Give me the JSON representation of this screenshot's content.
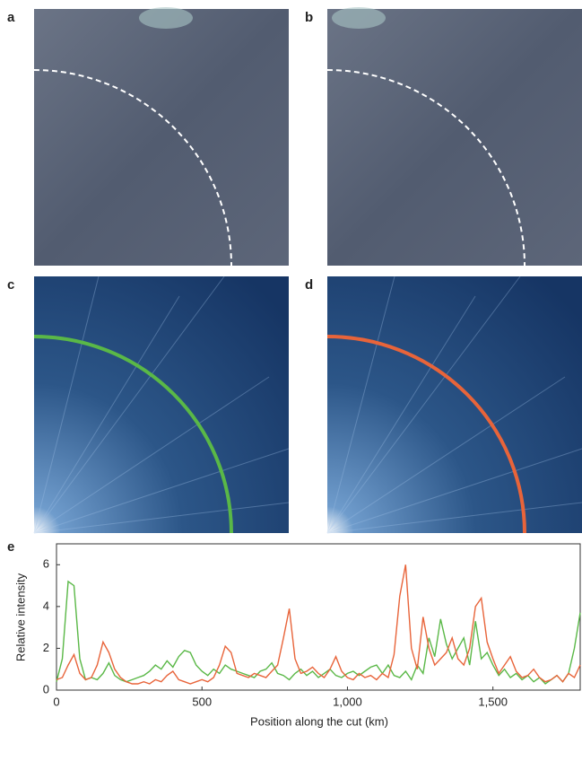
{
  "panel_labels": [
    "a",
    "b",
    "c",
    "d",
    "e"
  ],
  "chart_data": {
    "type": "line",
    "xlabel": "Position along the cut (km)",
    "ylabel": "Relative intensity",
    "x": [
      0,
      20,
      40,
      60,
      80,
      100,
      120,
      140,
      160,
      180,
      200,
      220,
      240,
      260,
      280,
      300,
      320,
      340,
      360,
      380,
      400,
      420,
      440,
      460,
      480,
      500,
      520,
      540,
      560,
      580,
      600,
      620,
      640,
      660,
      680,
      700,
      720,
      740,
      760,
      780,
      800,
      820,
      840,
      860,
      880,
      900,
      920,
      940,
      960,
      980,
      1000,
      1020,
      1040,
      1060,
      1080,
      1100,
      1120,
      1140,
      1160,
      1180,
      1200,
      1220,
      1240,
      1260,
      1280,
      1300,
      1320,
      1340,
      1360,
      1380,
      1400,
      1420,
      1440,
      1460,
      1480,
      1500,
      1520,
      1540,
      1560,
      1580,
      1600,
      1620,
      1640,
      1660,
      1680,
      1700,
      1720,
      1740,
      1760,
      1780,
      1800
    ],
    "series": [
      {
        "color": "#5ab847",
        "values": [
          0.4,
          1.5,
          5.2,
          5.0,
          1.5,
          0.5,
          0.6,
          0.5,
          0.8,
          1.3,
          0.7,
          0.5,
          0.4,
          0.5,
          0.6,
          0.7,
          0.9,
          1.2,
          1.0,
          1.4,
          1.1,
          1.6,
          1.9,
          1.8,
          1.2,
          0.9,
          0.7,
          1.0,
          0.8,
          1.2,
          1.0,
          0.9,
          0.8,
          0.7,
          0.6,
          0.9,
          1.0,
          1.3,
          0.8,
          0.7,
          0.5,
          0.8,
          1.0,
          0.7,
          0.9,
          0.6,
          0.8,
          1.0,
          0.7,
          0.6,
          0.8,
          0.9,
          0.7,
          0.9,
          1.1,
          1.2,
          0.8,
          1.2,
          0.7,
          0.6,
          0.9,
          0.5,
          1.2,
          0.8,
          2.5,
          1.6,
          3.4,
          2.2,
          1.5,
          2.0,
          2.5,
          1.2,
          3.3,
          1.5,
          1.8,
          1.2,
          0.7,
          1.0,
          0.6,
          0.8,
          0.5,
          0.7,
          0.4,
          0.6,
          0.3,
          0.5,
          0.7,
          0.4,
          0.8,
          2.0,
          3.7
        ]
      },
      {
        "color": "#e8643a",
        "values": [
          0.5,
          0.6,
          1.2,
          1.7,
          0.8,
          0.5,
          0.6,
          1.2,
          2.3,
          1.8,
          1.0,
          0.6,
          0.4,
          0.3,
          0.3,
          0.4,
          0.3,
          0.5,
          0.4,
          0.7,
          0.9,
          0.5,
          0.4,
          0.3,
          0.4,
          0.5,
          0.4,
          0.6,
          1.2,
          2.1,
          1.8,
          0.8,
          0.7,
          0.6,
          0.8,
          0.7,
          0.6,
          0.9,
          1.2,
          2.5,
          3.9,
          1.5,
          0.8,
          0.9,
          1.1,
          0.8,
          0.6,
          1.0,
          1.6,
          0.9,
          0.6,
          0.5,
          0.8,
          0.6,
          0.7,
          0.5,
          0.8,
          0.6,
          1.7,
          4.5,
          6.0,
          2.0,
          1.0,
          3.5,
          2.0,
          1.2,
          1.5,
          1.8,
          2.5,
          1.5,
          1.2,
          2.0,
          4.0,
          4.4,
          2.3,
          1.5,
          0.8,
          1.2,
          1.6,
          0.9,
          0.6,
          0.7,
          1.0,
          0.6,
          0.4,
          0.5,
          0.7,
          0.4,
          0.8,
          0.6,
          1.2
        ]
      }
    ],
    "xlim": [
      0,
      1800
    ],
    "xticks": [
      0,
      500,
      {
        "value": 1000,
        "label": "1,000"
      },
      {
        "value": 1500,
        "label": "1,500"
      }
    ],
    "ylim": [
      0,
      7
    ],
    "yticks": [
      0,
      2,
      4,
      6
    ]
  }
}
